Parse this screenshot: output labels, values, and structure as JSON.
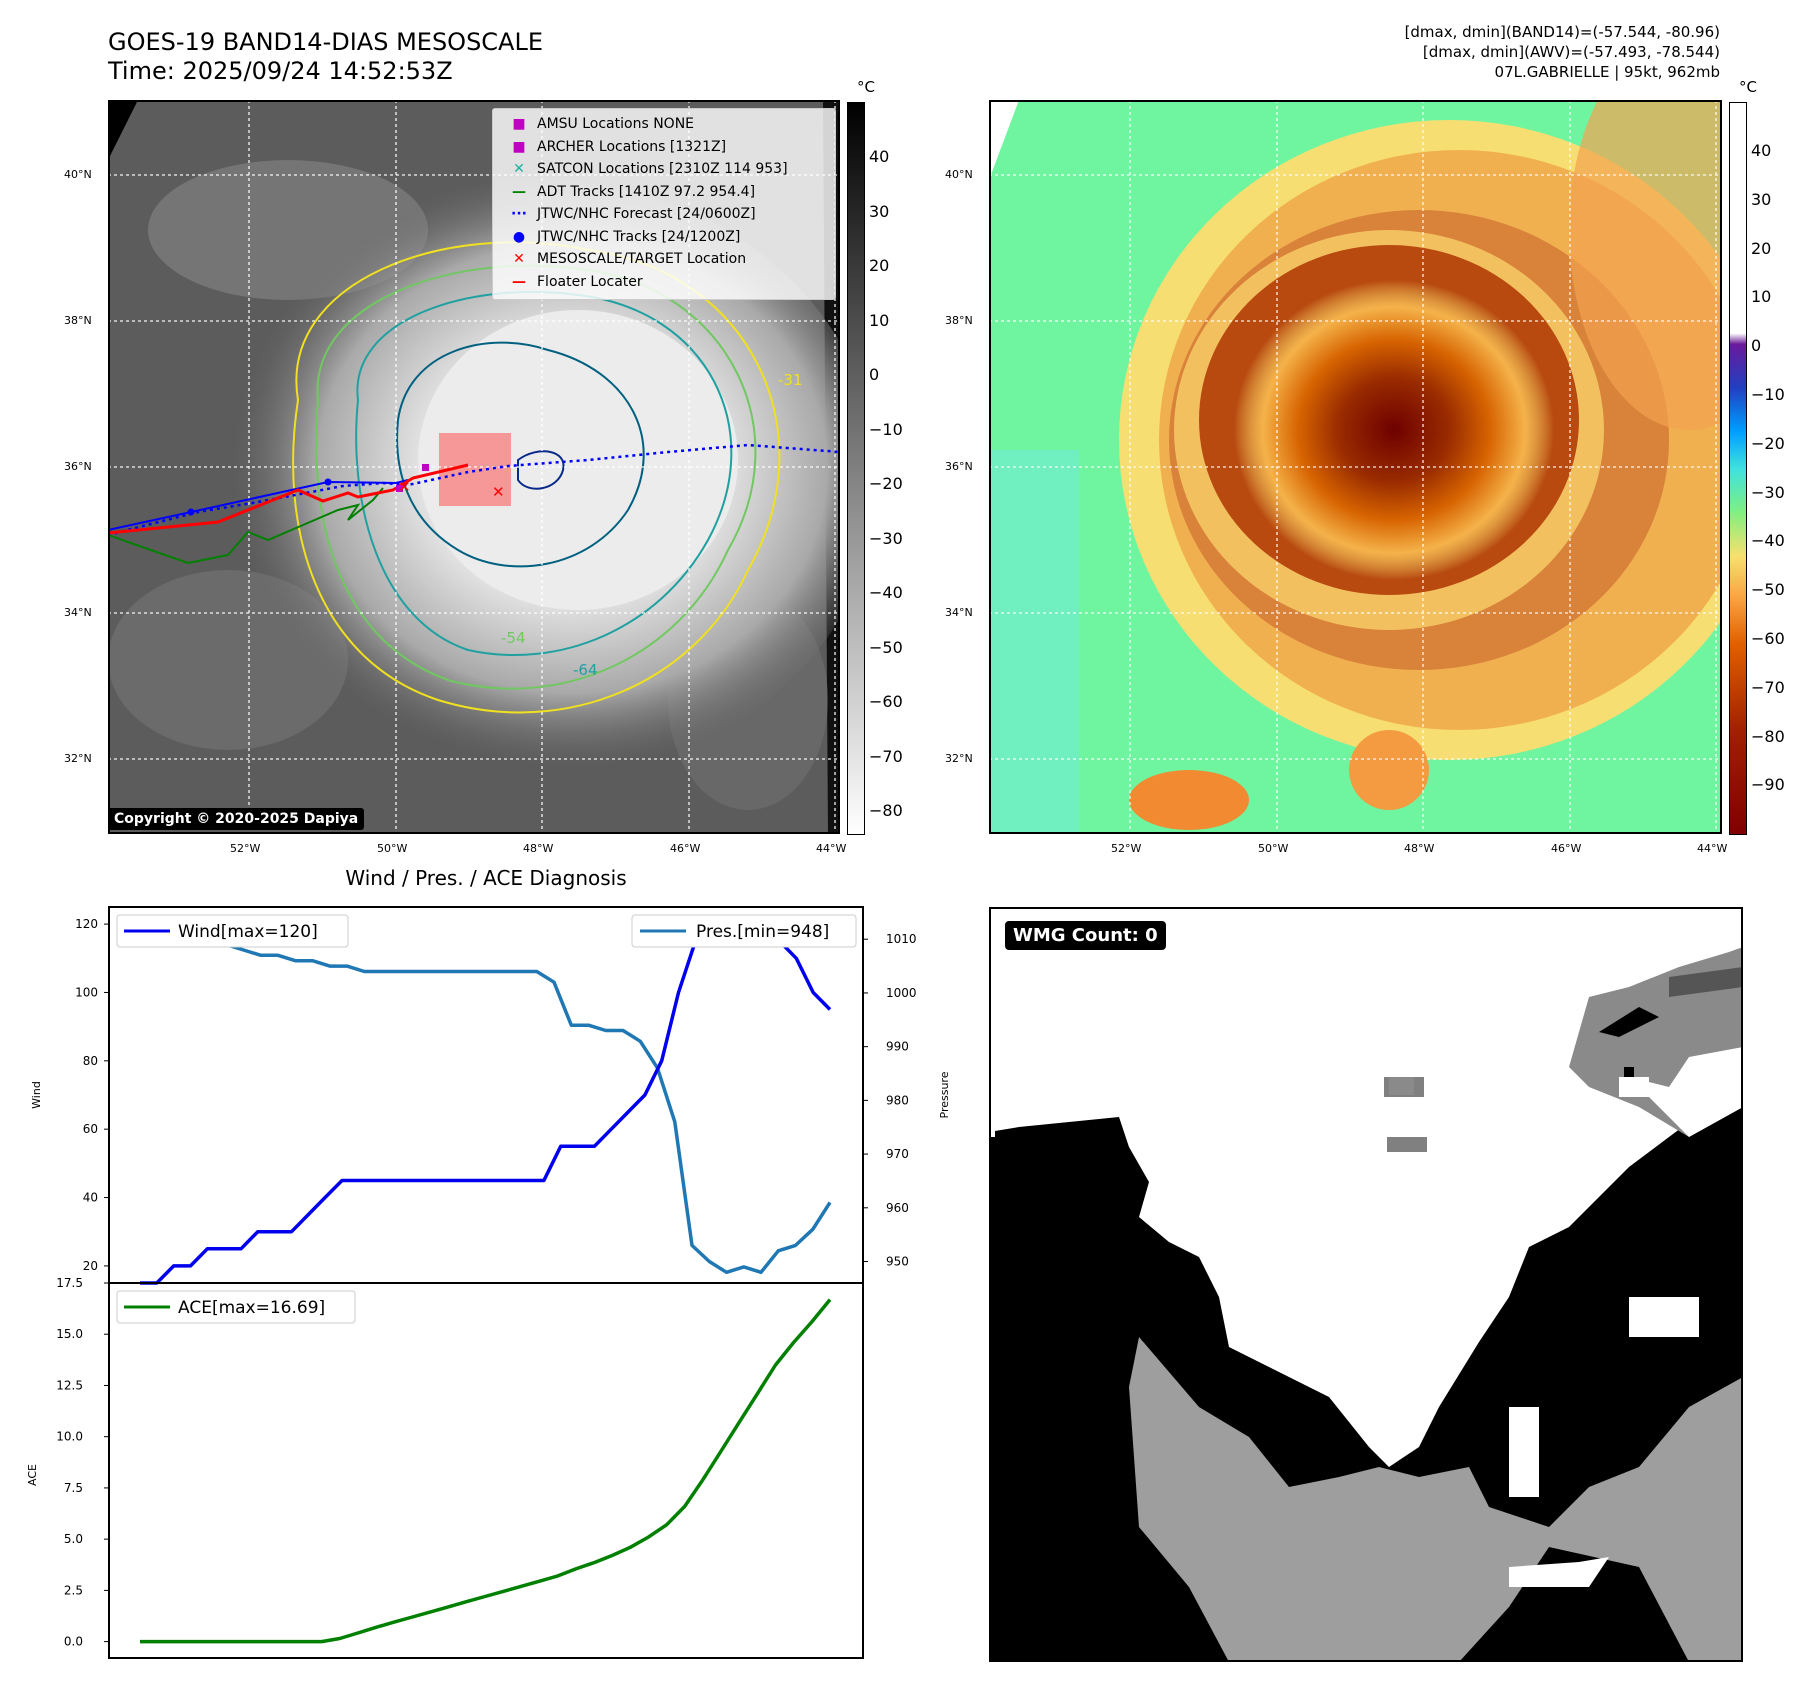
{
  "header": {
    "title_line1": "GOES-19 BAND14-DIAS MESOSCALE",
    "title_line2": "Time: 2025/09/24 14:52:53Z",
    "info_line1": "[dmax, dmin](BAND14)=(-57.544, -80.96)",
    "info_line2": "[dmax, dmin](AWV)=(-57.493, -78.544)",
    "info_line3": "07L.GABRIELLE | 95kt, 962mb"
  },
  "map": {
    "lat_labels": [
      "40°N",
      "38°N",
      "36°N",
      "34°N",
      "32°N"
    ],
    "lon_labels": [
      "52°W",
      "50°W",
      "48°W",
      "46°W",
      "44°W"
    ],
    "unit": "°C",
    "gray_colorbar_ticks": [
      "40",
      "30",
      "20",
      "10",
      "0",
      "−10",
      "−20",
      "−30",
      "−40",
      "−50",
      "−60",
      "−70",
      "−80"
    ],
    "color_colorbar_ticks": [
      "40",
      "30",
      "20",
      "10",
      "0",
      "−10",
      "−20",
      "−30",
      "−40",
      "−50",
      "−60",
      "−70",
      "−80",
      "−90"
    ],
    "copyright": "Copyright © 2020-2025 Dapiya",
    "contour_labels": [
      "-31",
      "-54",
      "-64"
    ],
    "legend": [
      {
        "label": "AMSU Locations NONE",
        "color": "#c000c0"
      },
      {
        "label": "ARCHER Locations [1321Z]",
        "color": "#c000c0"
      },
      {
        "label": "SATCON Locations [2310Z 114 953]",
        "color": "#20b0a0"
      },
      {
        "label": "ADT Tracks [1410Z 97.2 954.4]",
        "color": "#008000"
      },
      {
        "label": "JTWC/NHC Forecast [24/0600Z]",
        "color": "#0000ff"
      },
      {
        "label": "JTWC/NHC Tracks [24/1200Z]",
        "color": "#0000ff"
      },
      {
        "label": "MESOSCALE/TARGET Location",
        "color": "#ff0000"
      },
      {
        "label": "Floater Locater",
        "color": "#ff0000"
      }
    ]
  },
  "diagnosis": {
    "title": "Wind / Pres. / ACE Diagnosis",
    "wind_legend": "Wind[max=120]",
    "pres_legend": "Pres.[min=948]",
    "ace_legend": "ACE[max=16.69]",
    "wind_axis_label": "Wind",
    "pres_axis_label": "Pressure",
    "ace_axis_label": "ACE"
  },
  "wmg": {
    "badge": "WMG Count: 0"
  },
  "chart_data": [
    {
      "type": "line",
      "title": "Wind / Pres. / ACE Diagnosis",
      "ylabel": "Wind",
      "ylim": [
        15,
        125
      ],
      "yticks": [
        20,
        40,
        60,
        80,
        100,
        120
      ],
      "series": [
        {
          "name": "Wind[max=120]",
          "color": "#0000ee",
          "values": [
            15,
            15,
            20,
            20,
            25,
            25,
            25,
            30,
            30,
            30,
            35,
            40,
            45,
            45,
            45,
            45,
            45,
            45,
            45,
            45,
            45,
            45,
            45,
            45,
            45,
            55,
            55,
            55,
            60,
            65,
            70,
            80,
            100,
            115,
            120,
            120,
            120,
            120,
            115,
            110,
            100,
            95
          ]
        }
      ]
    },
    {
      "type": "line",
      "ylabel": "Pressure",
      "ylim": [
        946,
        1016
      ],
      "yticks": [
        950,
        960,
        970,
        980,
        990,
        1000,
        1010
      ],
      "series": [
        {
          "name": "Pres.[min=948]",
          "color": "#1f77b4",
          "values": [
            1012,
            1012,
            1011,
            1010,
            1010,
            1009,
            1008,
            1007,
            1007,
            1006,
            1006,
            1005,
            1005,
            1004,
            1004,
            1004,
            1004,
            1004,
            1004,
            1004,
            1004,
            1004,
            1004,
            1004,
            1002,
            994,
            994,
            993,
            993,
            991,
            986,
            976,
            953,
            950,
            948,
            949,
            948,
            952,
            953,
            956,
            961
          ]
        }
      ]
    },
    {
      "type": "line",
      "ylabel": "ACE",
      "ylim": [
        -0.8,
        17.5
      ],
      "yticks": [
        0.0,
        2.5,
        5.0,
        7.5,
        10.0,
        12.5,
        15.0,
        17.5
      ],
      "series": [
        {
          "name": "ACE[max=16.69]",
          "color": "#008000",
          "values": [
            0,
            0,
            0,
            0,
            0,
            0,
            0,
            0,
            0,
            0,
            0,
            0.15,
            0.42,
            0.7,
            0.95,
            1.2,
            1.45,
            1.7,
            1.95,
            2.2,
            2.45,
            2.7,
            2.95,
            3.2,
            3.55,
            3.85,
            4.2,
            4.6,
            5.1,
            5.7,
            6.6,
            7.9,
            9.3,
            10.7,
            12.1,
            13.5,
            14.6,
            15.6,
            16.69
          ]
        }
      ]
    }
  ]
}
